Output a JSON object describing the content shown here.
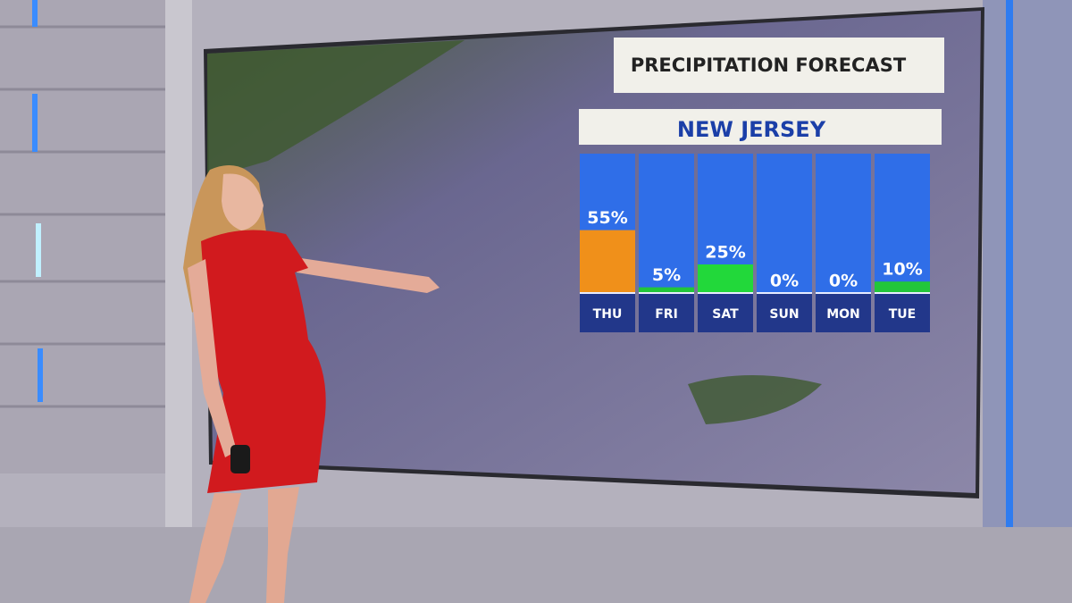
{
  "chart_data": {
    "type": "bar",
    "title": "PRECIPITATION FORECAST",
    "subtitle": "NEW JERSEY",
    "categories": [
      "THU",
      "FRI",
      "SAT",
      "SUN",
      "MON",
      "TUE"
    ],
    "values": [
      55,
      5,
      25,
      0,
      0,
      10
    ],
    "value_labels": [
      "55%",
      "5%",
      "25%",
      "0%",
      "0%",
      "10%"
    ],
    "colors": [
      "#f0901a",
      "#22c63a",
      "#22d83a",
      "#22c63a",
      "#22c63a",
      "#22c63a"
    ]
  }
}
